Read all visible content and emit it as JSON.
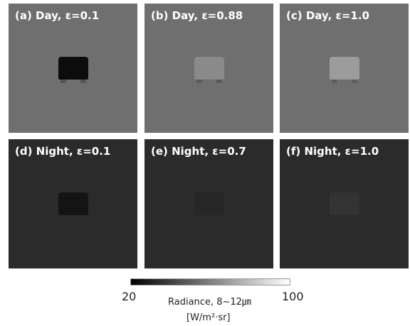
{
  "panels": [
    {
      "label": "(a) Day, ε=0.1"
    },
    {
      "label": "(b) Day, ε=0.88"
    },
    {
      "label": "(c) Day, ε=1.0"
    },
    {
      "label": "(d) Night, ε=0.1"
    },
    {
      "label": "(e) Night, ε=0.7"
    },
    {
      "label": "(f) Night, ε=1.0"
    }
  ],
  "colorbar": {
    "min": 20,
    "max": 100,
    "title": "Radiance, 8~12㎛",
    "unit": "[W/m²·sr]"
  }
}
